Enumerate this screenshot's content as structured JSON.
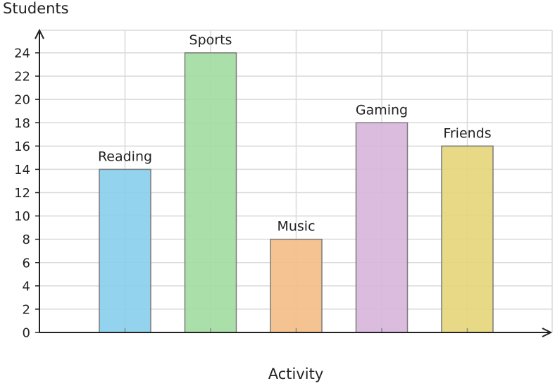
{
  "chart_data": {
    "type": "bar",
    "categories": [
      "Reading",
      "Sports",
      "Music",
      "Gaming",
      "Friends"
    ],
    "values": [
      14,
      24,
      8,
      18,
      16
    ],
    "colors": [
      "#87ceeb",
      "#a1dba1",
      "#f4bc85",
      "#d7b5dc",
      "#e5d57a"
    ],
    "title": "",
    "xlabel": "Activity",
    "ylabel": "Students",
    "ylim": [
      0,
      24
    ],
    "yticks": [
      0,
      2,
      4,
      6,
      8,
      10,
      12,
      14,
      16,
      18,
      20,
      22,
      24
    ],
    "grid": true,
    "data_labels": "category names above bars"
  }
}
